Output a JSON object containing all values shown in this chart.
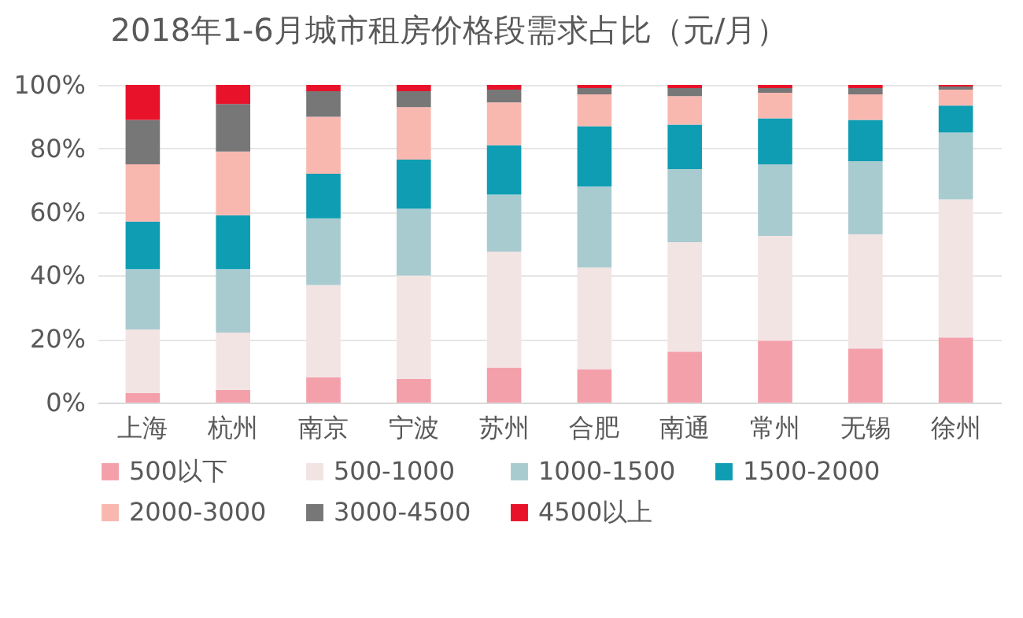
{
  "chart_data": {
    "type": "bar",
    "stacked": true,
    "title": "2018年1-6月城市租房价格段需求占比（元/月）",
    "categories": [
      "上海",
      "杭州",
      "南京",
      "宁波",
      "苏州",
      "合肥",
      "南通",
      "常州",
      "无锡",
      "徐州"
    ],
    "series": [
      {
        "name": "500以下",
        "color": "#f4a0aa",
        "values": [
          3,
          4,
          8,
          7.5,
          11,
          10.5,
          16,
          19.5,
          17,
          20.5
        ]
      },
      {
        "name": "500-1000",
        "color": "#f3e4e4",
        "values": [
          20,
          18,
          29,
          32.5,
          36.5,
          32,
          34.5,
          33,
          36,
          43.5
        ]
      },
      {
        "name": "1000-1500",
        "color": "#a8cbd0",
        "values": [
          19,
          20,
          21,
          21,
          18,
          25.5,
          23,
          22.5,
          23,
          21
        ]
      },
      {
        "name": "1500-2000",
        "color": "#0f9db3",
        "values": [
          15,
          17,
          14,
          15.5,
          15.5,
          19,
          14,
          14.5,
          13,
          8.5
        ]
      },
      {
        "name": "2000-3000",
        "color": "#f8b8b0",
        "values": [
          18,
          20,
          18,
          16.5,
          13.5,
          10,
          9,
          8,
          8,
          5
        ]
      },
      {
        "name": "3000-4500",
        "color": "#777777",
        "values": [
          14,
          15,
          8,
          5,
          4,
          2,
          2.5,
          1.5,
          2,
          1
        ]
      },
      {
        "name": "4500以上",
        "color": "#e8132a",
        "values": [
          11,
          6,
          2,
          2,
          1.5,
          1,
          1,
          1,
          1,
          0.5
        ]
      }
    ],
    "ylim": [
      0,
      100
    ],
    "yticks": [
      {
        "value": 0,
        "label": "0%"
      },
      {
        "value": 20,
        "label": "20%"
      },
      {
        "value": 40,
        "label": "40%"
      },
      {
        "value": 60,
        "label": "60%"
      },
      {
        "value": 80,
        "label": "80%"
      },
      {
        "value": 100,
        "label": "100%"
      }
    ],
    "grid": "y",
    "legend": "bottom"
  }
}
